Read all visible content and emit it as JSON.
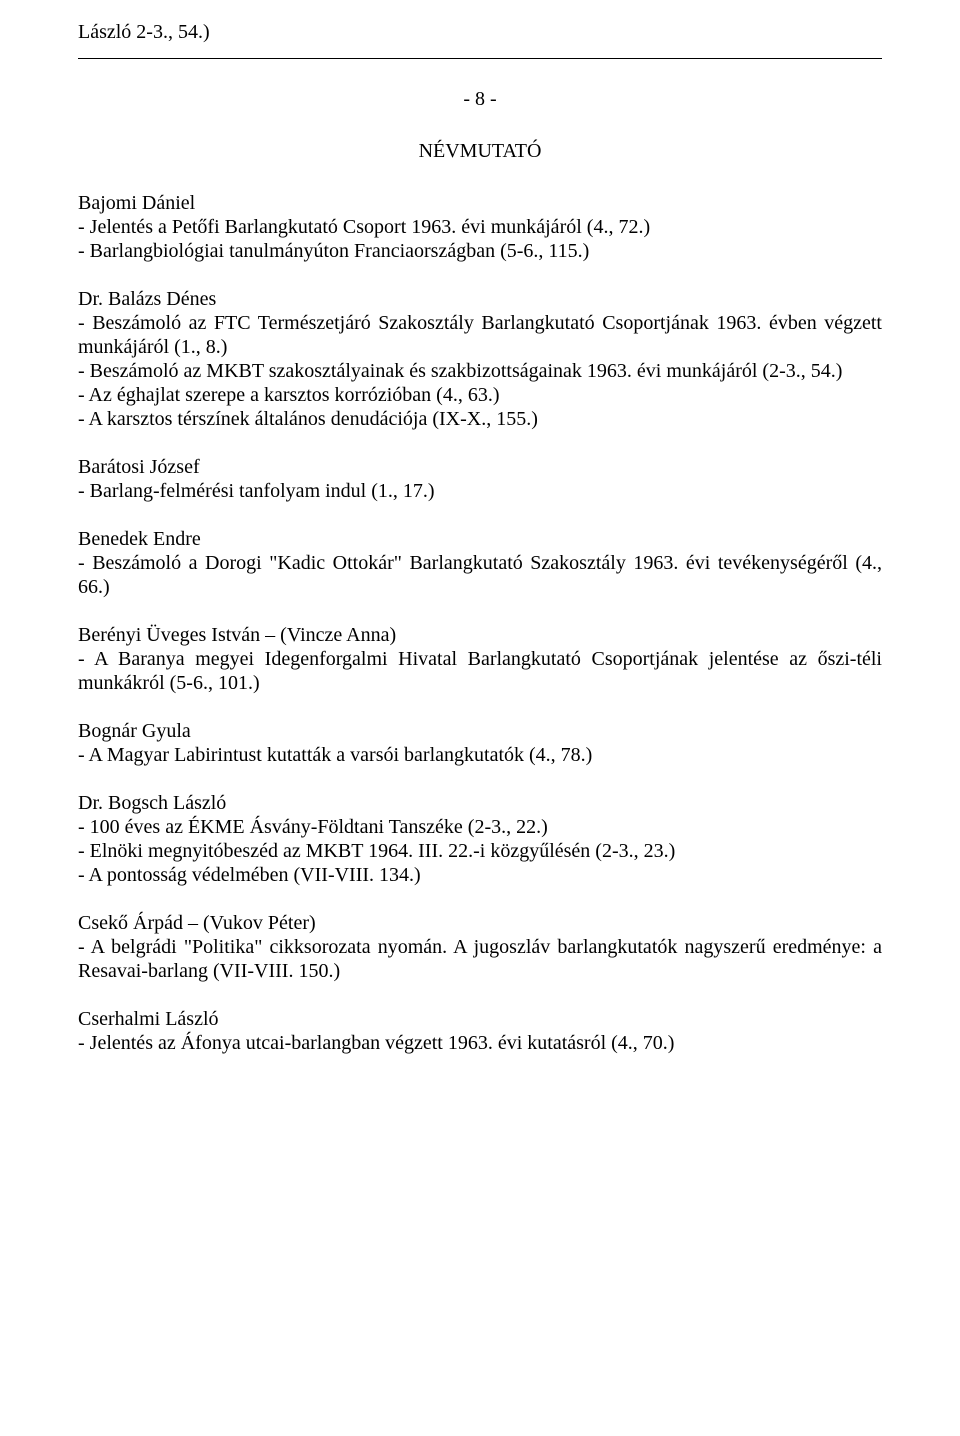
{
  "top_line": "László 2-3., 54.)",
  "page_number": "- 8 -",
  "section_title": "NÉVMUTATÓ",
  "entries": [
    {
      "name": "Bajomi Dániel",
      "items": [
        "- Jelentés a Petőfi Barlangkutató Csoport 1963. évi munkájáról (4., 72.)",
        "- Barlangbiológiai tanulmányúton Franciaországban (5-6., 115.)"
      ]
    },
    {
      "name": "Dr. Balázs Dénes",
      "items": [
        "- Beszámoló az FTC Természetjáró Szakosztály Barlangkutató Csoportjának 1963. évben végzett munkájáról (1., 8.)",
        "- Beszámoló az MKBT szakosztályainak és szakbizottságainak 1963. évi munkájáról (2-3., 54.)",
        "- Az éghajlat szerepe a karsztos korrózióban (4., 63.)",
        "- A karsztos térszínek általános denudációja (IX-X., 155.)"
      ]
    },
    {
      "name": "Barátosi József",
      "items": [
        "- Barlang-felmérési tanfolyam indul (1., 17.)"
      ]
    },
    {
      "name": "Benedek Endre",
      "items": [
        "- Beszámoló a Dorogi \"Kadic Ottokár\" Barlangkutató Szakosztály 1963. évi tevékenységéről (4., 66.)"
      ]
    },
    {
      "name": "Berényi Üveges István – (Vincze Anna)",
      "items": [
        "- A Baranya megyei Idegenforgalmi Hivatal Barlangkutató Csoportjának jelentése az őszi-téli munkákról (5-6., 101.)"
      ]
    },
    {
      "name": "Bognár Gyula",
      "items": [
        "- A Magyar Labirintust kutatták a varsói barlangkutatók (4., 78.)"
      ]
    },
    {
      "name": "Dr. Bogsch László",
      "items": [
        "- 100 éves az ÉKME Ásvány-Földtani Tanszéke (2-3., 22.)",
        "- Elnöki megnyitóbeszéd az MKBT 1964. III. 22.-i közgyűlésén (2-3., 23.)",
        "- A pontosság védelmében (VII-VIII. 134.)"
      ]
    },
    {
      "name": "Csekő Árpád – (Vukov Péter)",
      "items": [
        "- A belgrádi \"Politika\" cikksorozata nyomán. A jugoszláv barlangkutatók nagyszerű eredménye: a Resavai-barlang (VII-VIII. 150.)"
      ]
    },
    {
      "name": "Cserhalmi László",
      "items": [
        "- Jelentés az Áfonya utcai-barlangban végzett 1963. évi kutatásról (4., 70.)"
      ]
    }
  ]
}
